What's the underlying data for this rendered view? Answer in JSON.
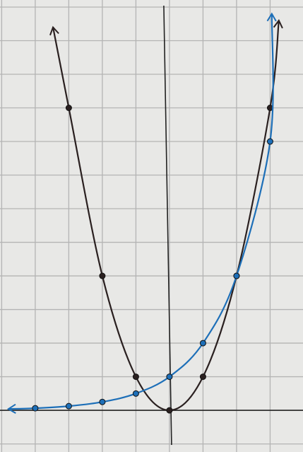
{
  "chart_data": {
    "type": "line",
    "xlim": [
      -5.05,
      3.98
    ],
    "ylim": [
      -1.24,
      12.21
    ],
    "xticks": [
      -5,
      -4,
      -3,
      -2,
      -1,
      0,
      1,
      2,
      3
    ],
    "yticks": [
      -1,
      0,
      1,
      2,
      3,
      4,
      5,
      6,
      7,
      8,
      9,
      10,
      11,
      12
    ],
    "grid": true,
    "series": [
      {
        "color": "#2a2020",
        "x": [
          -3.47,
          -3,
          -2,
          -1,
          0,
          1,
          2,
          3,
          3.26
        ],
        "values": [
          11.4,
          9,
          4,
          1,
          0,
          1,
          4,
          9,
          11.6
        ]
      },
      {
        "color": "#1d6fb8",
        "x": [
          -4.8,
          -4,
          -3,
          -2,
          -1,
          0,
          1,
          2,
          3,
          3.05
        ],
        "values": [
          0.04,
          0.0625,
          0.125,
          0.25,
          0.5,
          1,
          2,
          4,
          8,
          11.8
        ]
      }
    ]
  }
}
